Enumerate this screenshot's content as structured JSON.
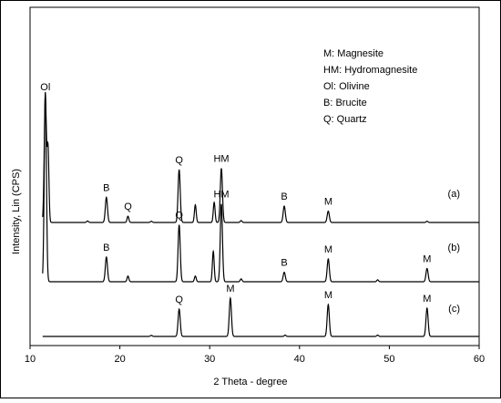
{
  "chart_data": {
    "type": "line",
    "title": "",
    "xlabel": "2 Theta - degree",
    "ylabel": "Intensity, Lin (CPS)",
    "xlim": [
      10,
      60
    ],
    "xticks": [
      10,
      20,
      30,
      40,
      50,
      60
    ],
    "yticks": "none",
    "grid": false,
    "legend_placement": "top-right",
    "legend": [
      "M: Magnesite",
      "HM: Hydromagnesite",
      "Ol: Olivine",
      "B: Brucite",
      "Q: Quartz"
    ],
    "series": [
      {
        "name": "(a)",
        "peaks": [
          {
            "x": 11.7,
            "y": 100,
            "w": 0.12,
            "label": "Ol"
          },
          {
            "x": 12.0,
            "y": 58,
            "w": 0.1,
            "label": ""
          },
          {
            "x": 18.5,
            "y": 20,
            "w": 0.12,
            "label": "B"
          },
          {
            "x": 20.9,
            "y": 5,
            "w": 0.1,
            "label": "Q"
          },
          {
            "x": 26.6,
            "y": 42,
            "w": 0.12,
            "label": "Q"
          },
          {
            "x": 28.4,
            "y": 14,
            "w": 0.1,
            "label": ""
          },
          {
            "x": 30.5,
            "y": 16,
            "w": 0.1,
            "label": ""
          },
          {
            "x": 31.3,
            "y": 43,
            "w": 0.12,
            "label": "HM"
          },
          {
            "x": 38.3,
            "y": 13,
            "w": 0.12,
            "label": "B"
          },
          {
            "x": 43.2,
            "y": 9,
            "w": 0.12,
            "label": "M"
          },
          {
            "x": 16.4,
            "y": 1.2,
            "w": 0.1,
            "label": ""
          },
          {
            "x": 23.5,
            "y": 1.0,
            "w": 0.1,
            "label": ""
          },
          {
            "x": 33.5,
            "y": 1.5,
            "w": 0.1,
            "label": ""
          },
          {
            "x": 54.2,
            "y": 1.0,
            "w": 0.1,
            "label": ""
          }
        ]
      },
      {
        "name": "(b)",
        "peaks": [
          {
            "x": 11.7,
            "y": 100,
            "w": 0.12,
            "label": ""
          },
          {
            "x": 18.5,
            "y": 13,
            "w": 0.12,
            "label": "B"
          },
          {
            "x": 20.9,
            "y": 3,
            "w": 0.1,
            "label": ""
          },
          {
            "x": 26.6,
            "y": 30,
            "w": 0.12,
            "label": "Q"
          },
          {
            "x": 28.4,
            "y": 3,
            "w": 0.1,
            "label": ""
          },
          {
            "x": 30.4,
            "y": 16,
            "w": 0.1,
            "label": ""
          },
          {
            "x": 31.3,
            "y": 41,
            "w": 0.12,
            "label": "HM"
          },
          {
            "x": 38.3,
            "y": 5,
            "w": 0.12,
            "label": "B"
          },
          {
            "x": 43.2,
            "y": 12,
            "w": 0.12,
            "label": "M"
          },
          {
            "x": 54.2,
            "y": 7,
            "w": 0.12,
            "label": "M"
          },
          {
            "x": 33.5,
            "y": 1.5,
            "w": 0.1,
            "label": ""
          },
          {
            "x": 48.7,
            "y": 1.0,
            "w": 0.1,
            "label": ""
          }
        ]
      },
      {
        "name": "(c)",
        "peaks": [
          {
            "x": 26.6,
            "y": 30,
            "w": 0.12,
            "label": "Q"
          },
          {
            "x": 32.3,
            "y": 42,
            "w": 0.12,
            "label": "M"
          },
          {
            "x": 43.2,
            "y": 35,
            "w": 0.12,
            "label": "M"
          },
          {
            "x": 54.2,
            "y": 31,
            "w": 0.12,
            "label": "M"
          },
          {
            "x": 23.5,
            "y": 1.2,
            "w": 0.1,
            "label": ""
          },
          {
            "x": 38.4,
            "y": 1.5,
            "w": 0.1,
            "label": ""
          },
          {
            "x": 48.7,
            "y": 1.5,
            "w": 0.1,
            "label": ""
          }
        ]
      }
    ]
  }
}
